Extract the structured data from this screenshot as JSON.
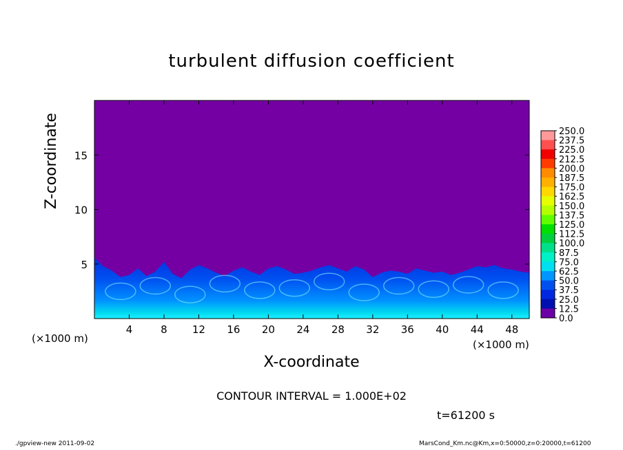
{
  "chart_data": {
    "type": "heatmap",
    "title": "turbulent diffusion coefficient",
    "xlabel": "X-coordinate",
    "ylabel": "Z-coordinate",
    "x_unit": "(×1000 m)",
    "xlim": [
      0,
      50
    ],
    "ylim": [
      0,
      20
    ],
    "x_ticks": [
      "4",
      "8",
      "12",
      "16",
      "20",
      "24",
      "28",
      "32",
      "36",
      "40",
      "44",
      "48"
    ],
    "y_ticks": [
      "5",
      "10",
      "15"
    ],
    "colorbar_levels": [
      "250.0",
      "237.5",
      "225.0",
      "212.5",
      "200.0",
      "187.5",
      "175.0",
      "162.5",
      "150.0",
      "137.5",
      "125.0",
      "112.5",
      "100.0",
      "87.5",
      "75.0",
      "62.5",
      "50.0",
      "37.5",
      "25.0",
      "12.5",
      "0.0"
    ],
    "colorbar_colors": [
      "#ff9999",
      "#ff5050",
      "#f00000",
      "#ff3c00",
      "#ff8c00",
      "#ffb000",
      "#ffd800",
      "#e6ff00",
      "#b4ff00",
      "#60ff00",
      "#00e000",
      "#00d040",
      "#00e08a",
      "#00f0c8",
      "#00e0f0",
      "#0096ff",
      "#0050f0",
      "#0028e0",
      "#0010b0",
      "#6b00a6"
    ],
    "background_color": "#7400a4",
    "boundary_layer_top_km": [
      5.6,
      4.8,
      4.4,
      3.8,
      4.0,
      4.6,
      3.9,
      4.3,
      5.2,
      4.1,
      3.7,
      4.5,
      4.9,
      4.6,
      4.2,
      3.9,
      4.4,
      4.7,
      4.3,
      4.0,
      4.6,
      4.8,
      4.5,
      4.1,
      4.2,
      4.4,
      4.7,
      4.9,
      4.6,
      4.3,
      4.8,
      4.5,
      3.8,
      4.2,
      4.4,
      4.3,
      4.1,
      4.6,
      4.4,
      4.2,
      4.3,
      4.0,
      4.2,
      4.5,
      4.8,
      4.7,
      4.9,
      4.6,
      4.5,
      4.3,
      4.2
    ],
    "contour_interval": "CONTOUR INTERVAL = 1.000E+02",
    "time": "t=61200 s"
  },
  "footer": {
    "left": "./gpview-new   2011-09-02",
    "right": "MarsCond_Km.nc@Km,x=0:50000,z=0:20000,t=61200"
  }
}
